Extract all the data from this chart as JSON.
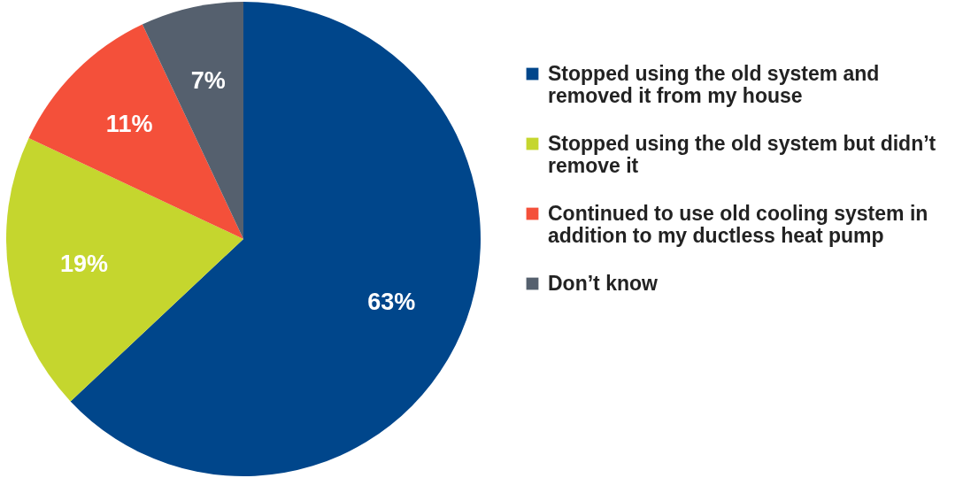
{
  "chart_data": {
    "type": "pie",
    "categories": [
      "Stopped using the old system and removed it from my house",
      "Stopped using the old system but didn’t remove it",
      "Continued to use old cooling system in addition to my ductless heat pump",
      "Don’t know"
    ],
    "values": [
      63,
      19,
      11,
      7
    ],
    "colors": [
      "#00468b",
      "#c5d62e",
      "#f4503a",
      "#55606e"
    ],
    "value_labels": [
      "63%",
      "19%",
      "11%",
      "7%"
    ],
    "legend": "right"
  }
}
